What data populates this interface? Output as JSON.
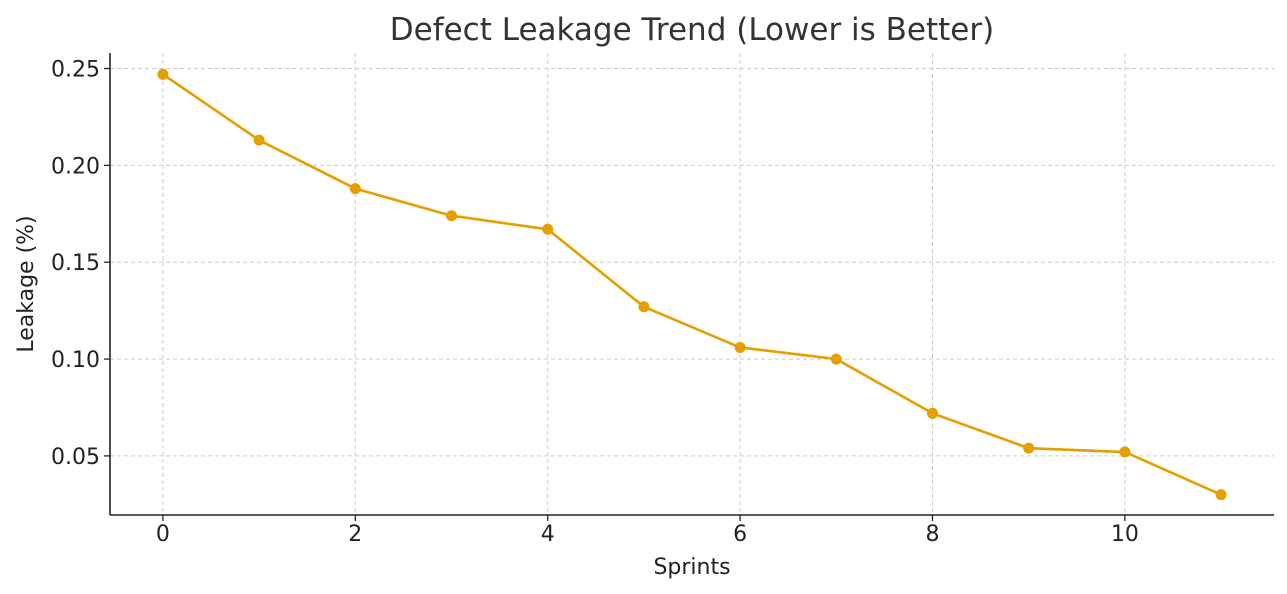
{
  "chart_data": {
    "type": "line",
    "title": "Defect Leakage Trend (Lower is Better)",
    "xlabel": "Sprints",
    "ylabel": "Leakage (%)",
    "xlim": [
      -0.55,
      11.55
    ],
    "ylim": [
      0.0195,
      0.258
    ],
    "grid": true,
    "x_ticks": [
      0,
      2,
      4,
      6,
      8,
      10
    ],
    "x_tick_labels": [
      "0",
      "2",
      "4",
      "6",
      "8",
      "10"
    ],
    "y_ticks": [
      0.05,
      0.1,
      0.15,
      0.2,
      0.25
    ],
    "y_tick_labels": [
      "0.05",
      "0.10",
      "0.15",
      "0.20",
      "0.25"
    ],
    "series": [
      {
        "color": "#e69f00",
        "marker": "circle",
        "x": [
          0,
          1,
          2,
          3,
          4,
          5,
          6,
          7,
          8,
          9,
          10,
          11
        ],
        "values": [
          0.247,
          0.213,
          0.188,
          0.174,
          0.167,
          0.127,
          0.106,
          0.1,
          0.072,
          0.054,
          0.052,
          0.03
        ]
      }
    ]
  }
}
